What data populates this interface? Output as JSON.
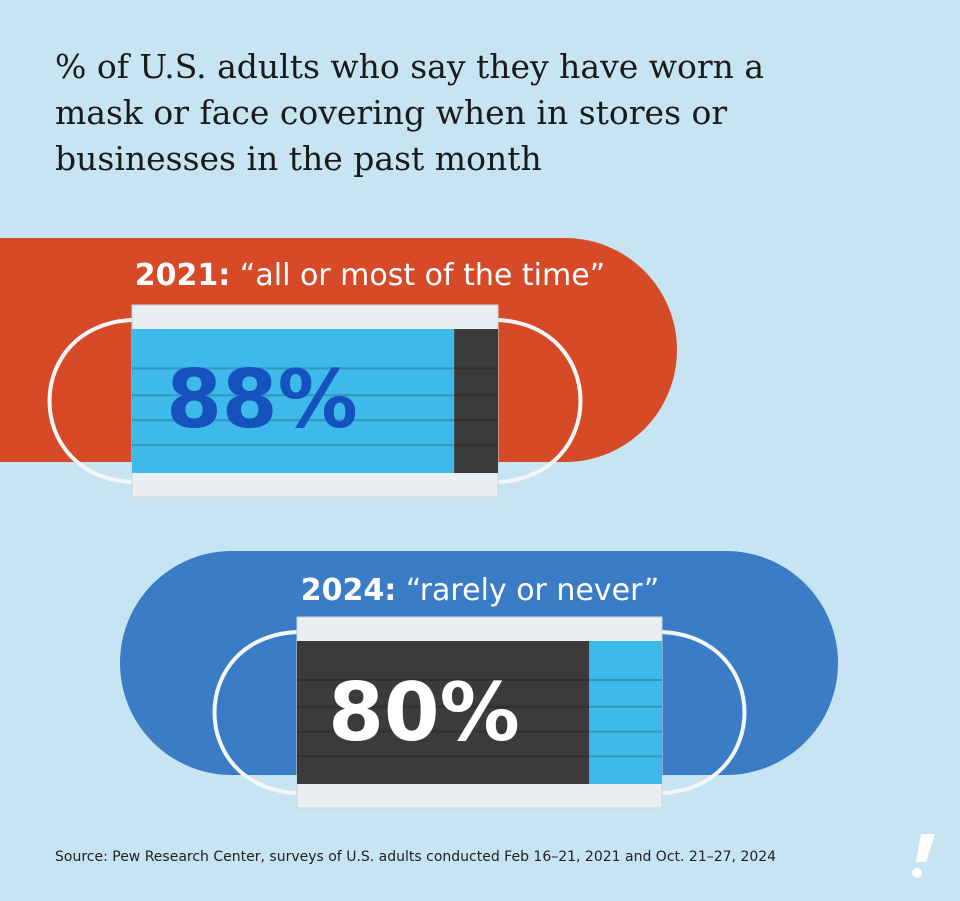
{
  "chart_data": {
    "type": "mask",
    "title": "% of U.S. adults who say they have worn a mask or face covering when in stores or businesses in the past month",
    "categories": [
      "2021:",
      "2024:"
    ],
    "descriptions": [
      "“all or most of the time”",
      "“rarely or never”"
    ],
    "values": [
      88,
      80
    ],
    "value_labels": [
      "88%",
      "80%"
    ],
    "fill_colors": [
      "#3db9ea",
      "#3b3b3b"
    ],
    "rest_colors": [
      "#3b3b3b",
      "#3db9ea"
    ],
    "label_colors": [
      "#1552bd",
      "#ffffff"
    ],
    "panel_colors": [
      "#d64a28",
      "#3a7cc5"
    ],
    "source": "Source: Pew Research Center, surveys of U.S. adults conducted Feb 16–21, 2021 and Oct. 21–27, 2024"
  }
}
